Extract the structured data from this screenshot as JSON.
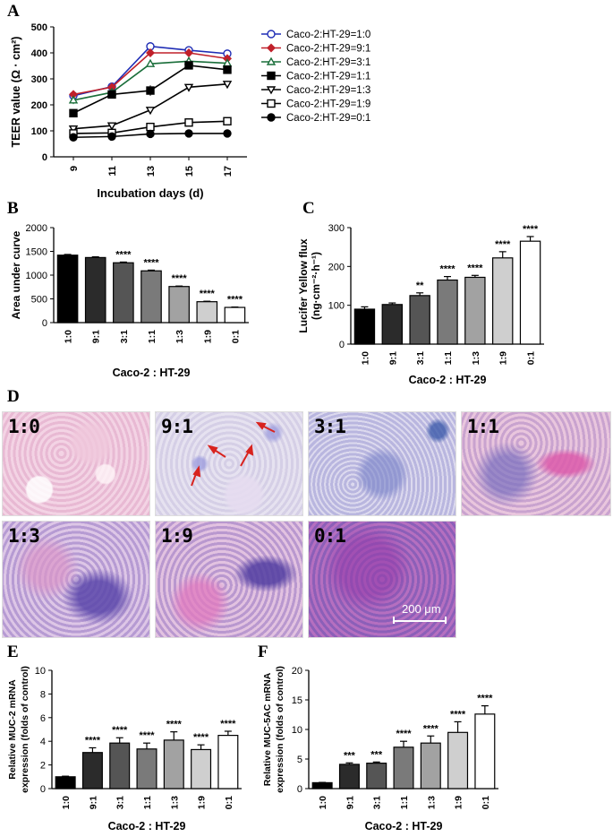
{
  "panels": {
    "A": "A",
    "B": "B",
    "C": "C",
    "D": "D",
    "E": "E",
    "F": "F"
  },
  "chart_data": [
    {
      "id": "A",
      "type": "line",
      "xlabel": "Incubation days (d)",
      "ylabel": "TEER value (Ω · cm²)",
      "x": [
        9,
        11,
        13,
        15,
        17
      ],
      "xticks": [
        "9",
        "11",
        "13",
        "15",
        "17"
      ],
      "ylim": [
        0,
        500
      ],
      "yticks": [
        0,
        100,
        200,
        300,
        400,
        500
      ],
      "legend_position": "right",
      "series": [
        {
          "name": "Caco-2:HT-29=1:0",
          "values": [
            235,
            270,
            425,
            410,
            397
          ],
          "errors": [
            10,
            10,
            12,
            10,
            8
          ],
          "marker": "circle-open",
          "color": "#1f2db5"
        },
        {
          "name": "Caco-2:HT-29=9:1",
          "values": [
            240,
            268,
            400,
            400,
            378
          ],
          "errors": [
            10,
            10,
            10,
            8,
            8
          ],
          "marker": "diamond",
          "color": "#c0202a"
        },
        {
          "name": "Caco-2:HT-29=3:1",
          "values": [
            218,
            248,
            358,
            368,
            360
          ],
          "errors": [
            15,
            10,
            10,
            10,
            8
          ],
          "marker": "triangle-open",
          "color": "#1a6e3a"
        },
        {
          "name": "Caco-2:HT-29=1:1",
          "values": [
            168,
            240,
            255,
            352,
            335
          ],
          "errors": [
            12,
            15,
            20,
            10,
            8
          ],
          "marker": "square",
          "color": "#000000"
        },
        {
          "name": "Caco-2:HT-29=1:3",
          "values": [
            108,
            120,
            180,
            268,
            280
          ],
          "errors": [
            8,
            8,
            10,
            10,
            12
          ],
          "marker": "triangle-down-open",
          "color": "#000000"
        },
        {
          "name": "Caco-2:HT-29=1:9",
          "values": [
            90,
            92,
            115,
            132,
            137
          ],
          "errors": [
            10,
            8,
            8,
            8,
            6
          ],
          "marker": "square-open",
          "color": "#000000"
        },
        {
          "name": "Caco-2:HT-29=0:1",
          "values": [
            75,
            78,
            88,
            90,
            90
          ],
          "errors": [
            5,
            5,
            5,
            4,
            4
          ],
          "marker": "circle",
          "color": "#000000"
        }
      ]
    },
    {
      "id": "B",
      "type": "bar",
      "xlabel": "Caco-2 : HT-29",
      "ylabel": "Area under curve",
      "categories": [
        "1:0",
        "9:1",
        "3:1",
        "1:1",
        "1:3",
        "1:9",
        "0:1"
      ],
      "values": [
        1420,
        1370,
        1260,
        1090,
        760,
        440,
        320
      ],
      "errors": [
        15,
        15,
        15,
        15,
        10,
        10,
        8
      ],
      "significance": [
        "",
        "",
        "****",
        "****",
        "****",
        "****",
        "****"
      ],
      "fills": [
        "#000000",
        "#2b2b2b",
        "#555555",
        "#7a7a7a",
        "#a2a2a2",
        "#cfcfcf",
        "#ffffff"
      ],
      "ylim": [
        0,
        2000
      ],
      "yticks": [
        0,
        500,
        1000,
        1500,
        2000
      ]
    },
    {
      "id": "C",
      "type": "bar",
      "xlabel": "Caco-2 : HT-29",
      "ylabel_line1": "Lucifer Yellow flux",
      "ylabel_line2": "(ng·cm⁻²·h⁻¹)",
      "categories": [
        "1:0",
        "9:1",
        "3:1",
        "1:1",
        "1:3",
        "1:9",
        "0:1"
      ],
      "values": [
        90,
        102,
        125,
        165,
        172,
        222,
        265
      ],
      "errors": [
        6,
        4,
        7,
        9,
        5,
        16,
        12
      ],
      "significance": [
        "",
        "",
        "**",
        "****",
        "****",
        "****",
        "****"
      ],
      "fills": [
        "#000000",
        "#2b2b2b",
        "#555555",
        "#7a7a7a",
        "#a2a2a2",
        "#cfcfcf",
        "#ffffff"
      ],
      "ylim": [
        0,
        300
      ],
      "yticks": [
        0,
        100,
        200,
        300
      ]
    },
    {
      "id": "E",
      "type": "bar",
      "xlabel": "Caco-2 : HT-29",
      "ylabel_line1": "Relative MUC-2 mRNA",
      "ylabel_line2": "expression (folds of control)",
      "categories": [
        "1:0",
        "9:1",
        "3:1",
        "1:1",
        "1:3",
        "1:9",
        "0:1"
      ],
      "values": [
        1.0,
        3.05,
        3.85,
        3.35,
        4.1,
        3.3,
        4.5
      ],
      "errors": [
        0.05,
        0.4,
        0.45,
        0.5,
        0.7,
        0.4,
        0.35
      ],
      "significance": [
        "",
        "****",
        "****",
        "****",
        "****",
        "****",
        "****"
      ],
      "fills": [
        "#000000",
        "#2b2b2b",
        "#555555",
        "#7a7a7a",
        "#a2a2a2",
        "#cfcfcf",
        "#ffffff"
      ],
      "ylim": [
        0,
        10
      ],
      "yticks": [
        0,
        2,
        4,
        6,
        8,
        10
      ]
    },
    {
      "id": "F",
      "type": "bar",
      "xlabel": "Caco-2 : HT-29",
      "ylabel_line1": "Relative MUC-5AC mRNA",
      "ylabel_line2": "expression (folds of control)",
      "categories": [
        "1:0",
        "9:1",
        "3:1",
        "1:1",
        "1:3",
        "1:9",
        "0:1"
      ],
      "values": [
        1.0,
        4.1,
        4.3,
        7.0,
        7.7,
        9.5,
        12.6
      ],
      "errors": [
        0.05,
        0.25,
        0.2,
        1.0,
        1.2,
        1.8,
        1.4
      ],
      "significance": [
        "",
        "***",
        "***",
        "****",
        "****",
        "****",
        "****"
      ],
      "fills": [
        "#000000",
        "#2b2b2b",
        "#555555",
        "#7a7a7a",
        "#a2a2a2",
        "#cfcfcf",
        "#ffffff"
      ],
      "ylim": [
        0,
        20
      ],
      "yticks": [
        0,
        5,
        10,
        15,
        20
      ]
    }
  ],
  "micrographs": {
    "labels": [
      "1:0",
      "9:1",
      "3:1",
      "1:1",
      "1:3",
      "1:9",
      "0:1"
    ],
    "scale_bar": "200 μm"
  }
}
